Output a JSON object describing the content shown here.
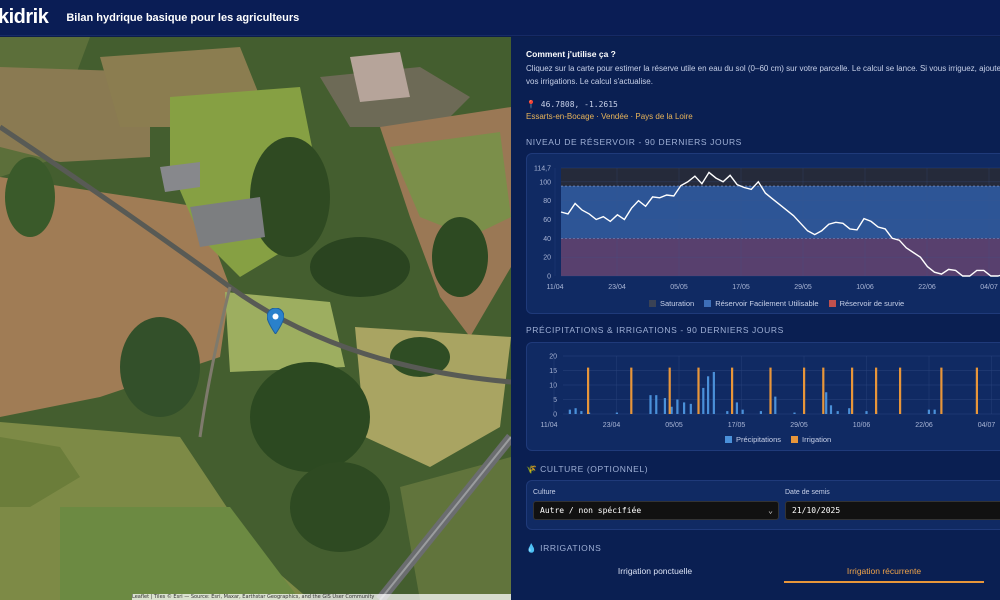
{
  "header": {
    "logo": "kidrik",
    "title": "Bilan hydrique basique pour les agriculteurs"
  },
  "map": {
    "attribution": "Leaflet | Tiles © Esri — Source: Esri, Maxar, Earthstar Geographics, and the GIS User Community"
  },
  "howto": {
    "title": "Comment j'utilise ça ?",
    "text": "Cliquez sur la carte pour estimer la réserve utile en eau du sol (0–60 cm) sur votre parcelle. Le calcul se lance. Si vous irriguez, ajoutez vos irrigations. Le calcul s'actualise."
  },
  "location": {
    "pin_icon": "📍",
    "coords": "46.7808, -1.2615",
    "place": "Essarts-en-Bocage · Vendée · Pays de la Loire"
  },
  "reservoir": {
    "title": "NIVEAU DE RÉSERVOIR - 90 DERNIERS JOURS",
    "legend": [
      {
        "label": "Saturation",
        "color": "#3a4255"
      },
      {
        "label": "Réservoir Facilement Utilisable",
        "color": "#3e6fb8"
      },
      {
        "label": "Réservoir de survie",
        "color": "#c0504d"
      }
    ]
  },
  "precip": {
    "title": "PRÉCIPITATIONS & IRRIGATIONS - 90 DERNIERS JOURS",
    "legend": [
      {
        "label": "Précipitations",
        "color": "#4a90d9"
      },
      {
        "label": "Irrigation",
        "color": "#e8963a"
      }
    ]
  },
  "culture": {
    "icon": "🌾",
    "title": "CULTURE (OPTIONNEL)",
    "crop_label": "Culture",
    "crop_value": "Autre / non spécifiée",
    "sowing_label": "Date de semis",
    "sowing_value": "21/10/2025"
  },
  "irrigations": {
    "icon": "💧",
    "title": "IRRIGATIONS",
    "tabs": [
      "Irrigation ponctuelle",
      "Irrigation récurrente"
    ]
  },
  "chart_data": [
    {
      "type": "area",
      "title": "NIVEAU DE RÉSERVOIR - 90 DERNIERS JOURS",
      "x_ticks": [
        "11/04",
        "23/04",
        "05/05",
        "17/05",
        "29/05",
        "10/06",
        "22/06",
        "04/07"
      ],
      "y_ticks": [
        0,
        20,
        40,
        60,
        80,
        100,
        114.7
      ],
      "ylim": [
        0,
        114.7
      ],
      "bands": {
        "saturation_above": 95.5,
        "rfu_between": [
          40,
          95.5
        ],
        "survie_below": 40
      },
      "series": [
        {
          "values": [
            68,
            66,
            77,
            70,
            66,
            60,
            63,
            58,
            65,
            60,
            72,
            80,
            74,
            84,
            83,
            86,
            85,
            96,
            100,
            106,
            98,
            110,
            104,
            100,
            107,
            97,
            94,
            92,
            100,
            88,
            82,
            76,
            70,
            64,
            56,
            48,
            44,
            48,
            55,
            57,
            56,
            50,
            49,
            61,
            58,
            52,
            50,
            40,
            38,
            30,
            25,
            20,
            10,
            4,
            2,
            7,
            6,
            0,
            0,
            6,
            6,
            0,
            0,
            2,
            1
          ]
        }
      ]
    },
    {
      "type": "bar",
      "title": "PRÉCIPITATIONS & IRRIGATIONS - 90 DERNIERS JOURS",
      "x_ticks": [
        "11/04",
        "23/04",
        "05/05",
        "17/05",
        "29/05",
        "10/06",
        "22/06",
        "04/07"
      ],
      "y_ticks": [
        0,
        5,
        10,
        15,
        20
      ],
      "ylim": [
        0,
        20
      ],
      "series": [
        {
          "name": "Précipitations",
          "points": [
            [
              0.6,
              1.5
            ],
            [
              1.2,
              2
            ],
            [
              1.8,
              1
            ],
            [
              2.6,
              0.5
            ],
            [
              5.5,
              0.5
            ],
            [
              9,
              6.5
            ],
            [
              9.6,
              6.5
            ],
            [
              10.5,
              5.5
            ],
            [
              11.2,
              2.5
            ],
            [
              11.8,
              5
            ],
            [
              12.5,
              4
            ],
            [
              13.2,
              3.5
            ],
            [
              14.5,
              9
            ],
            [
              15,
              13
            ],
            [
              15.6,
              14.5
            ],
            [
              17,
              1
            ],
            [
              18,
              4
            ],
            [
              18.6,
              1.5
            ],
            [
              20.5,
              1
            ],
            [
              22,
              6
            ],
            [
              24,
              0.5
            ],
            [
              27.3,
              7.5
            ],
            [
              27.8,
              3
            ],
            [
              28.5,
              1
            ],
            [
              29.7,
              2
            ],
            [
              31.5,
              1
            ],
            [
              32.5,
              1
            ],
            [
              38,
              1.5
            ],
            [
              38.6,
              1.5
            ],
            [
              45.8,
              1
            ],
            [
              46.6,
              1
            ]
          ]
        },
        {
          "name": "Irrigation",
          "points": [
            [
              2.5,
              16
            ],
            [
              7,
              16
            ],
            [
              11,
              16
            ],
            [
              14,
              16
            ],
            [
              17.5,
              16
            ],
            [
              21.5,
              16
            ],
            [
              25,
              16
            ],
            [
              27,
              16
            ],
            [
              30,
              16
            ],
            [
              32.5,
              16
            ],
            [
              35,
              16
            ],
            [
              39.3,
              16
            ],
            [
              43,
              16
            ],
            [
              46,
              16
            ]
          ]
        }
      ]
    }
  ]
}
